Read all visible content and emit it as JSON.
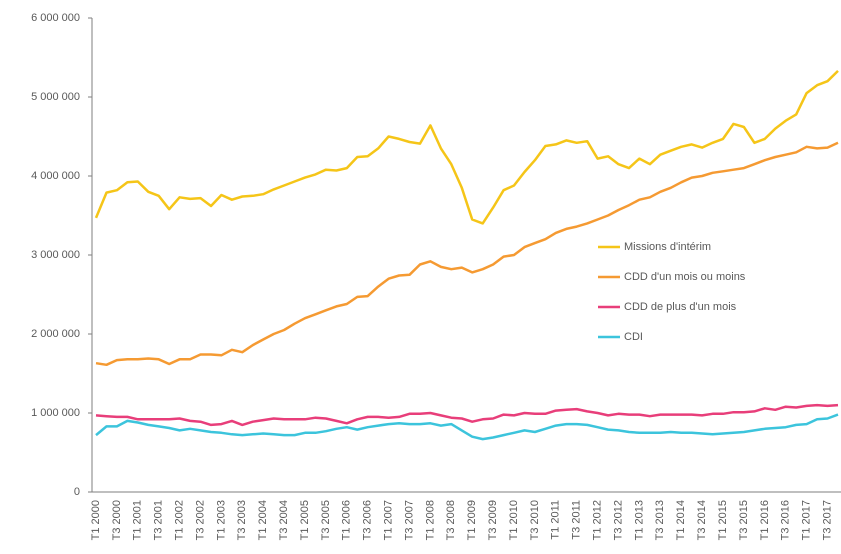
{
  "chart_data": {
    "type": "line",
    "categories": [
      "T1 2000",
      null,
      "T3 2000",
      null,
      "T1 2001",
      null,
      "T3 2001",
      null,
      "T1 2002",
      null,
      "T3 2002",
      null,
      "T1 2003",
      null,
      "T3 2003",
      null,
      "T1 2004",
      null,
      "T3 2004",
      null,
      "T1 2005",
      null,
      "T3 2005",
      null,
      "T1 2006",
      null,
      "T3 2006",
      null,
      "T1 2007",
      null,
      "T3 2007",
      null,
      "T1 2008",
      null,
      "T3 2008",
      null,
      "T1 2009",
      null,
      "T3 2009",
      null,
      "T1 2010",
      null,
      "T3 2010",
      null,
      "T1 2011",
      null,
      "T3 2011",
      null,
      "T1 2012",
      null,
      "T3 2012",
      null,
      "T1 2013",
      null,
      "T3 2013",
      null,
      "T1 2014",
      null,
      "T3 2014",
      null,
      "T1 2015",
      null,
      "T3 2015",
      null,
      "T1 2016",
      null,
      "T3 2016",
      null,
      "T1 2017",
      null,
      "T3 2017",
      null
    ],
    "series": [
      {
        "name": "Missions d'intérim",
        "color": "#f5c518",
        "values": [
          3470000,
          3790000,
          3820000,
          3920000,
          3930000,
          3800000,
          3750000,
          3580000,
          3730000,
          3710000,
          3720000,
          3620000,
          3760000,
          3700000,
          3740000,
          3750000,
          3770000,
          3830000,
          3880000,
          3930000,
          3980000,
          4020000,
          4080000,
          4070000,
          4100000,
          4240000,
          4250000,
          4350000,
          4500000,
          4470000,
          4430000,
          4410000,
          4640000,
          4350000,
          4150000,
          3850000,
          3450000,
          3400000,
          3600000,
          3820000,
          3880000,
          4050000,
          4200000,
          4380000,
          4400000,
          4450000,
          4420000,
          4440000,
          4220000,
          4250000,
          4150000,
          4100000,
          4220000,
          4150000,
          4270000,
          4320000,
          4370000,
          4400000,
          4360000,
          4420000,
          4470000,
          4660000,
          4620000,
          4420000,
          4470000,
          4600000,
          4700000,
          4780000,
          5050000,
          5150000,
          5200000,
          5330000
        ]
      },
      {
        "name": "CDD d'un mois ou moins",
        "color": "#f59a32",
        "values": [
          1630000,
          1610000,
          1670000,
          1680000,
          1680000,
          1690000,
          1680000,
          1620000,
          1680000,
          1680000,
          1740000,
          1740000,
          1730000,
          1800000,
          1770000,
          1860000,
          1930000,
          2000000,
          2050000,
          2130000,
          2200000,
          2250000,
          2300000,
          2350000,
          2380000,
          2470000,
          2480000,
          2600000,
          2700000,
          2740000,
          2750000,
          2880000,
          2920000,
          2850000,
          2820000,
          2840000,
          2780000,
          2820000,
          2880000,
          2980000,
          3000000,
          3100000,
          3150000,
          3200000,
          3280000,
          3330000,
          3360000,
          3400000,
          3450000,
          3500000,
          3570000,
          3630000,
          3700000,
          3730000,
          3800000,
          3850000,
          3920000,
          3980000,
          4000000,
          4040000,
          4060000,
          4080000,
          4100000,
          4150000,
          4200000,
          4240000,
          4270000,
          4300000,
          4370000,
          4350000,
          4360000,
          4420000
        ]
      },
      {
        "name": "CDD de plus d'un mois",
        "color": "#e83e7a",
        "values": [
          970000,
          960000,
          950000,
          950000,
          920000,
          920000,
          920000,
          920000,
          930000,
          900000,
          890000,
          850000,
          860000,
          900000,
          850000,
          890000,
          910000,
          930000,
          920000,
          920000,
          920000,
          940000,
          930000,
          900000,
          870000,
          920000,
          950000,
          950000,
          940000,
          950000,
          990000,
          990000,
          1000000,
          970000,
          940000,
          930000,
          890000,
          920000,
          930000,
          980000,
          970000,
          1000000,
          990000,
          990000,
          1030000,
          1040000,
          1050000,
          1020000,
          1000000,
          970000,
          990000,
          980000,
          980000,
          960000,
          980000,
          980000,
          980000,
          980000,
          970000,
          990000,
          990000,
          1010000,
          1010000,
          1020000,
          1060000,
          1040000,
          1080000,
          1070000,
          1090000,
          1100000,
          1090000,
          1100000
        ]
      },
      {
        "name": "CDI",
        "color": "#3cc4dc",
        "values": [
          720000,
          830000,
          830000,
          900000,
          880000,
          850000,
          830000,
          810000,
          780000,
          800000,
          780000,
          760000,
          750000,
          730000,
          720000,
          730000,
          740000,
          730000,
          720000,
          720000,
          750000,
          750000,
          770000,
          800000,
          820000,
          790000,
          820000,
          840000,
          860000,
          870000,
          860000,
          860000,
          870000,
          840000,
          860000,
          780000,
          700000,
          670000,
          690000,
          720000,
          750000,
          780000,
          760000,
          800000,
          840000,
          860000,
          860000,
          850000,
          820000,
          790000,
          780000,
          760000,
          750000,
          750000,
          750000,
          760000,
          750000,
          750000,
          740000,
          730000,
          740000,
          750000,
          760000,
          780000,
          800000,
          810000,
          820000,
          850000,
          860000,
          920000,
          930000,
          980000
        ]
      }
    ],
    "ylim": [
      0,
      6000000
    ],
    "yticks": [
      0,
      {
        "value": 1000000,
        "label": "1 000 000"
      },
      {
        "value": 2000000,
        "label": "2 000 000"
      },
      {
        "value": 3000000,
        "label": "3 000 000"
      },
      {
        "value": 4000000,
        "label": "4 000 000"
      },
      {
        "value": 5000000,
        "label": "5 000 000"
      },
      {
        "value": 6000000,
        "label": "6 000 000"
      }
    ],
    "grid": false,
    "legend": "right"
  }
}
